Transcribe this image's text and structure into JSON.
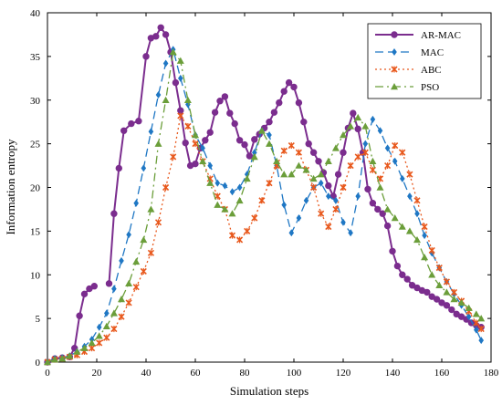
{
  "chart_data": {
    "type": "line",
    "xlabel": "Simulation steps",
    "ylabel": "Information entropy",
    "xlim": [
      0,
      180
    ],
    "ylim": [
      0,
      40
    ],
    "xticks": [
      0,
      20,
      40,
      60,
      80,
      100,
      120,
      140,
      160,
      180
    ],
    "yticks": [
      0,
      5,
      10,
      15,
      20,
      25,
      30,
      35,
      40
    ],
    "grid": false,
    "legend_position": "top-right",
    "series": [
      {
        "name": "AR-MAC",
        "color": "#7B2D8E",
        "line_style": "solid",
        "marker": "circle",
        "x": [
          0,
          3,
          6,
          9,
          11,
          13,
          15,
          17,
          19,
          null,
          25,
          27,
          29,
          31,
          34,
          37,
          40,
          42,
          44,
          46,
          48,
          50,
          52,
          54,
          56,
          58,
          60,
          62,
          64,
          66,
          68,
          70,
          72,
          74,
          76,
          78,
          80,
          82,
          84,
          86,
          88,
          90,
          92,
          94,
          96,
          98,
          100,
          102,
          104,
          106,
          108,
          110,
          112,
          114,
          116,
          118,
          120,
          122,
          124,
          126,
          128,
          130,
          132,
          134,
          136,
          138,
          140,
          142,
          144,
          146,
          148,
          150,
          152,
          154,
          156,
          158,
          160,
          162,
          164,
          166,
          168,
          170,
          172,
          174,
          176
        ],
        "y": [
          0,
          0.4,
          0.5,
          0.6,
          1.6,
          5.3,
          7.8,
          8.4,
          8.7,
          null,
          9.0,
          17.0,
          22.2,
          26.5,
          27.3,
          27.6,
          35.0,
          37.1,
          37.3,
          38.3,
          37.5,
          35.5,
          32.0,
          28.8,
          25.1,
          22.5,
          22.7,
          24.5,
          25.4,
          26.3,
          28.6,
          29.9,
          30.4,
          28.5,
          27.3,
          25.4,
          24.9,
          23.6,
          25.5,
          26.1,
          26.8,
          27.5,
          28.6,
          29.7,
          31.0,
          32.0,
          31.5,
          29.7,
          27.5,
          25.0,
          24.0,
          23.0,
          21.7,
          20.2,
          19.0,
          21.5,
          24.0,
          26.8,
          28.5,
          26.7,
          24.0,
          19.8,
          18.2,
          17.5,
          17.0,
          15.6,
          12.7,
          11.0,
          10.0,
          9.5,
          8.8,
          8.5,
          8.2,
          8.0,
          7.5,
          7.2,
          6.8,
          6.5,
          6.0,
          5.5,
          5.2,
          4.9,
          4.5,
          4.2,
          4.0
        ]
      },
      {
        "name": "MAC",
        "color": "#1F77C4",
        "line_style": "dashed",
        "marker": "diamond",
        "x": [
          0,
          3,
          6,
          9,
          12,
          15,
          18,
          21,
          24,
          27,
          30,
          33,
          36,
          39,
          42,
          45,
          48,
          51,
          54,
          57,
          60,
          63,
          66,
          69,
          72,
          75,
          78,
          81,
          84,
          87,
          90,
          93,
          96,
          99,
          102,
          105,
          108,
          111,
          114,
          117,
          120,
          123,
          126,
          129,
          132,
          135,
          138,
          141,
          144,
          147,
          150,
          153,
          156,
          159,
          162,
          165,
          168,
          171,
          174,
          176
        ],
        "y": [
          0,
          0.4,
          0.5,
          0.7,
          1.2,
          1.8,
          2.6,
          4.0,
          5.6,
          8.4,
          11.6,
          14.6,
          18.2,
          22.2,
          26.4,
          30.6,
          34.2,
          35.8,
          32.5,
          29.5,
          26.0,
          24.5,
          22.5,
          20.5,
          20.2,
          19.5,
          20.0,
          21.5,
          24.0,
          26.5,
          26.0,
          22.5,
          18.0,
          14.8,
          16.5,
          18.5,
          20.0,
          20.5,
          19.0,
          18.5,
          16.0,
          14.8,
          19.0,
          25.0,
          27.8,
          26.5,
          24.5,
          23.0,
          21.0,
          19.0,
          17.0,
          14.5,
          12.5,
          10.8,
          9.2,
          7.8,
          6.5,
          5.2,
          3.7,
          2.5
        ]
      },
      {
        "name": "ABC",
        "color": "#E8581C",
        "line_style": "dotted",
        "marker": "cross",
        "x": [
          0,
          3,
          6,
          9,
          12,
          15,
          18,
          21,
          24,
          27,
          30,
          33,
          36,
          39,
          42,
          45,
          48,
          51,
          54,
          57,
          60,
          63,
          66,
          69,
          72,
          75,
          78,
          81,
          84,
          87,
          90,
          93,
          96,
          99,
          102,
          105,
          108,
          111,
          114,
          117,
          120,
          123,
          126,
          129,
          132,
          135,
          138,
          141,
          144,
          147,
          150,
          153,
          156,
          159,
          162,
          165,
          168,
          171,
          174,
          176
        ],
        "y": [
          0,
          0.3,
          0.4,
          0.6,
          0.8,
          1.2,
          1.6,
          2.2,
          2.8,
          3.8,
          5.2,
          6.8,
          8.6,
          10.4,
          12.5,
          16.0,
          20.0,
          23.5,
          28.2,
          27.0,
          25.0,
          23.0,
          21.0,
          19.0,
          17.5,
          14.5,
          14.0,
          15.0,
          16.5,
          18.5,
          20.5,
          22.5,
          24.2,
          24.8,
          24.0,
          22.0,
          20.0,
          17.0,
          15.5,
          17.5,
          20.0,
          22.5,
          23.5,
          24.0,
          22.0,
          21.0,
          22.5,
          24.8,
          24.0,
          21.5,
          18.5,
          15.5,
          12.8,
          10.8,
          9.2,
          8.0,
          7.0,
          5.8,
          4.5,
          3.8
        ]
      },
      {
        "name": "PSO",
        "color": "#6B9E3A",
        "line_style": "dashdot",
        "marker": "triangle",
        "x": [
          0,
          3,
          6,
          9,
          12,
          15,
          18,
          21,
          24,
          27,
          30,
          33,
          36,
          39,
          42,
          45,
          48,
          51,
          54,
          57,
          60,
          63,
          66,
          69,
          72,
          75,
          78,
          81,
          84,
          87,
          90,
          93,
          96,
          99,
          102,
          105,
          108,
          111,
          114,
          117,
          120,
          123,
          126,
          129,
          132,
          135,
          138,
          141,
          144,
          147,
          150,
          153,
          156,
          159,
          162,
          165,
          168,
          171,
          174,
          176
        ],
        "y": [
          0,
          0.3,
          0.4,
          0.7,
          1.2,
          1.6,
          2.2,
          3.0,
          4.1,
          5.6,
          7.2,
          9.0,
          11.5,
          14.0,
          17.5,
          25.0,
          30.0,
          35.5,
          34.5,
          30.0,
          26.0,
          23.0,
          20.5,
          18.0,
          17.5,
          17.0,
          18.5,
          21.0,
          23.5,
          26.5,
          25.0,
          23.0,
          21.5,
          21.5,
          22.5,
          22.0,
          21.0,
          21.5,
          23.0,
          24.5,
          26.0,
          27.0,
          28.0,
          27.0,
          23.0,
          20.0,
          17.5,
          16.5,
          15.5,
          15.0,
          14.0,
          12.0,
          10.0,
          8.8,
          8.0,
          7.2,
          6.8,
          6.2,
          5.5,
          5.0
        ]
      }
    ]
  }
}
